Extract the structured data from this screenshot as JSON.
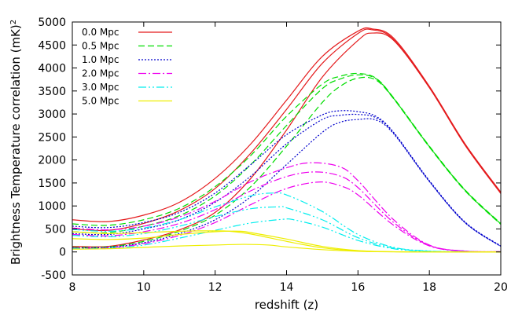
{
  "chart_data": {
    "type": "line",
    "title": "",
    "xlabel": "redshift (z)",
    "ylabel": "Brightness Temperature correlation (mK)",
    "ylabel_sup": "2",
    "xlim": [
      8,
      20
    ],
    "ylim": [
      -500,
      5000
    ],
    "xticks": [
      8,
      10,
      12,
      14,
      16,
      18,
      20
    ],
    "yticks": [
      -500,
      0,
      500,
      1000,
      1500,
      2000,
      2500,
      3000,
      3500,
      4000,
      4500,
      5000
    ],
    "grid": false,
    "legend_position": "top-left",
    "legend": [
      {
        "label": "0.0 Mpc",
        "color": "#e41a1c",
        "dash": "solid"
      },
      {
        "label": "0.5 Mpc",
        "color": "#00dd00",
        "dash": "dashed"
      },
      {
        "label": "1.0 Mpc",
        "color": "#0000cc",
        "dash": "dotted"
      },
      {
        "label": "2.0 Mpc",
        "color": "#ee00ee",
        "dash": "dashdot"
      },
      {
        "label": "3.0 Mpc",
        "color": "#00eeee",
        "dash": "dashdotdot"
      },
      {
        "label": "5.0 Mpc",
        "color": "#eeee00",
        "dash": "solid"
      }
    ],
    "series": [
      {
        "name": "0.0 Mpc",
        "color": "#e41a1c",
        "dash": "solid",
        "x": [
          8,
          9,
          10,
          11,
          12,
          13,
          14,
          15,
          16,
          16.4,
          17,
          18,
          19,
          20
        ],
        "y": [
          700,
          660,
          800,
          1080,
          1600,
          2350,
          3300,
          4250,
          4800,
          4850,
          4650,
          3600,
          2350,
          1300
        ]
      },
      {
        "color": "#e41a1c",
        "dash": "solid",
        "x": [
          8,
          9,
          10,
          11,
          12,
          13,
          14,
          15,
          16,
          16.4,
          17,
          18,
          19,
          20
        ],
        "y": [
          500,
          470,
          620,
          900,
          1380,
          2150,
          3100,
          4100,
          4750,
          4830,
          4620,
          3580,
          2330,
          1280
        ]
      },
      {
        "color": "#e41a1c",
        "dash": "solid",
        "x": [
          8,
          9,
          10,
          11,
          12,
          13,
          14,
          15,
          16,
          16.4,
          17,
          18,
          19,
          20
        ],
        "y": [
          120,
          120,
          260,
          480,
          860,
          1600,
          2650,
          3800,
          4600,
          4760,
          4600,
          3570,
          2320,
          1270
        ]
      },
      {
        "color": "#00dd00",
        "dash": "dashed",
        "x": [
          8,
          9,
          10,
          11,
          12,
          13,
          14,
          15,
          15.5,
          16,
          16.5,
          17,
          18,
          19,
          20
        ],
        "y": [
          610,
          580,
          700,
          950,
          1420,
          2100,
          2950,
          3650,
          3820,
          3880,
          3780,
          3350,
          2300,
          1350,
          620
        ]
      },
      {
        "color": "#00dd00",
        "dash": "dashed",
        "x": [
          8,
          9,
          10,
          11,
          12,
          13,
          14,
          15,
          15.5,
          16,
          16.5,
          17,
          18,
          19,
          20
        ],
        "y": [
          440,
          420,
          560,
          790,
          1220,
          1900,
          2750,
          3550,
          3760,
          3850,
          3770,
          3340,
          2290,
          1340,
          610
        ]
      },
      {
        "color": "#00dd00",
        "dash": "dashed",
        "x": [
          8,
          9,
          10,
          11,
          12,
          13,
          14,
          15,
          15.5,
          16,
          16.5,
          17,
          18,
          19,
          20
        ],
        "y": [
          100,
          110,
          230,
          450,
          800,
          1420,
          2300,
          3250,
          3600,
          3780,
          3740,
          3330,
          2280,
          1330,
          600
        ]
      },
      {
        "color": "#0000cc",
        "dash": "dotted",
        "x": [
          8,
          9,
          10,
          11,
          12,
          13,
          14,
          15,
          15.5,
          16,
          16.5,
          17,
          18,
          19,
          20
        ],
        "y": [
          560,
          530,
          640,
          860,
          1280,
          1900,
          2550,
          2980,
          3070,
          3050,
          2950,
          2600,
          1550,
          650,
          130
        ]
      },
      {
        "color": "#0000cc",
        "dash": "dotted",
        "x": [
          8,
          9,
          10,
          11,
          12,
          13,
          14,
          15,
          15.5,
          16,
          16.5,
          17,
          18,
          19,
          20
        ],
        "y": [
          400,
          380,
          500,
          700,
          1080,
          1650,
          2350,
          2880,
          2970,
          2990,
          2920,
          2590,
          1540,
          640,
          125
        ]
      },
      {
        "color": "#0000cc",
        "dash": "dotted",
        "x": [
          8,
          9,
          10,
          11,
          12,
          13,
          14,
          15,
          15.5,
          16,
          16.5,
          17,
          18,
          19,
          20
        ],
        "y": [
          90,
          100,
          200,
          400,
          700,
          1200,
          1900,
          2600,
          2820,
          2880,
          2870,
          2570,
          1530,
          635,
          120
        ]
      },
      {
        "color": "#ee00ee",
        "dash": "dashdot",
        "x": [
          8,
          9,
          10,
          11,
          12,
          13,
          14,
          14.7,
          15.5,
          16,
          17,
          18,
          19,
          20
        ],
        "y": [
          520,
          480,
          560,
          760,
          1100,
          1530,
          1830,
          1940,
          1850,
          1550,
          700,
          150,
          20,
          5
        ]
      },
      {
        "color": "#ee00ee",
        "dash": "dashdot",
        "x": [
          8,
          9,
          10,
          11,
          12,
          13,
          14,
          14.8,
          15.5,
          16,
          17,
          18,
          19,
          20
        ],
        "y": [
          380,
          350,
          440,
          620,
          920,
          1330,
          1640,
          1740,
          1650,
          1400,
          640,
          140,
          18,
          5
        ]
      },
      {
        "color": "#ee00ee",
        "dash": "dashdot",
        "x": [
          8,
          9,
          10,
          11,
          12,
          13,
          14,
          14.9,
          15.5,
          16,
          17,
          18,
          19,
          20
        ],
        "y": [
          80,
          90,
          180,
          360,
          640,
          1030,
          1380,
          1520,
          1440,
          1240,
          580,
          130,
          15,
          5
        ]
      },
      {
        "color": "#00eeee",
        "dash": "dashdotdot",
        "x": [
          8,
          9,
          10,
          11,
          12,
          13,
          13.6,
          14,
          15,
          16,
          17,
          18,
          19,
          20
        ],
        "y": [
          490,
          450,
          520,
          700,
          980,
          1220,
          1280,
          1240,
          880,
          380,
          100,
          20,
          5,
          2
        ]
      },
      {
        "color": "#00eeee",
        "dash": "dashdotdot",
        "x": [
          8,
          9,
          10,
          11,
          12,
          13,
          13.8,
          14,
          15,
          16,
          17,
          18,
          19,
          20
        ],
        "y": [
          360,
          330,
          400,
          560,
          770,
          940,
          980,
          960,
          700,
          310,
          85,
          15,
          4,
          2
        ]
      },
      {
        "color": "#00eeee",
        "dash": "dashdotdot",
        "x": [
          8,
          9,
          10,
          11,
          12,
          13,
          13.9,
          14.2,
          15,
          16,
          17,
          18,
          19,
          20
        ],
        "y": [
          70,
          80,
          150,
          300,
          470,
          630,
          710,
          700,
          540,
          250,
          70,
          12,
          3,
          2
        ]
      },
      {
        "color": "#eeee00",
        "dash": "solid",
        "x": [
          8,
          9,
          10,
          11,
          12,
          12.4,
          13,
          14,
          15,
          16,
          17,
          18,
          19,
          20
        ],
        "y": [
          440,
          400,
          420,
          450,
          460,
          450,
          390,
          230,
          90,
          20,
          3,
          1,
          0,
          0
        ]
      },
      {
        "color": "#eeee00",
        "dash": "solid",
        "x": [
          8,
          9,
          10,
          11,
          12,
          12.7,
          13,
          14,
          15,
          16,
          17,
          18,
          19,
          20
        ],
        "y": [
          290,
          270,
          300,
          380,
          440,
          450,
          420,
          280,
          120,
          30,
          5,
          1,
          0,
          0
        ]
      },
      {
        "color": "#eeee00",
        "dash": "solid",
        "x": [
          8,
          9,
          10,
          11,
          12,
          12.8,
          13.5,
          14,
          15,
          16,
          17,
          18,
          19,
          20
        ],
        "y": [
          60,
          70,
          100,
          130,
          150,
          165,
          150,
          110,
          50,
          15,
          3,
          1,
          0,
          0
        ]
      }
    ]
  }
}
